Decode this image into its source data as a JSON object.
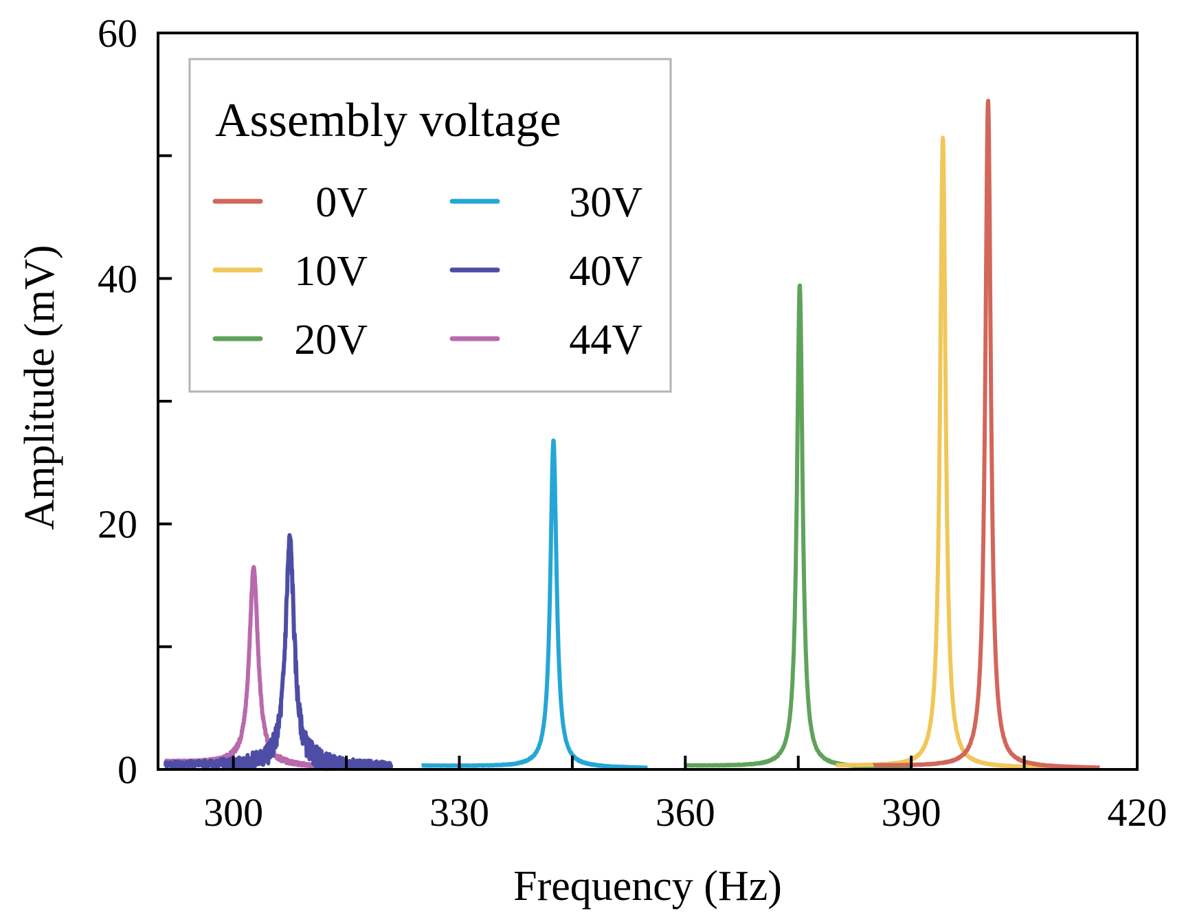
{
  "chart_data": {
    "type": "line",
    "xlabel": "Frequency (Hz)",
    "ylabel": "Amplitude (mV)",
    "xlim": [
      290,
      420
    ],
    "ylim": [
      0,
      60
    ],
    "x_ticks_labeled": [
      300,
      330,
      360,
      390,
      420
    ],
    "x_ticks_minor": [
      315,
      345,
      375,
      405
    ],
    "y_ticks_labeled": [
      0,
      20,
      40,
      60
    ],
    "y_ticks_minor": [
      10,
      30,
      50
    ],
    "grid": false,
    "legend": {
      "title": "Assembly voltage",
      "placement": "top-left",
      "columns": 2
    },
    "series": [
      {
        "name": "0V",
        "color": "#d2665a",
        "peak_frequency": 400.2,
        "peak_amplitude": 54.5,
        "x_range": [
          385,
          415
        ],
        "baseline_start": 0.3,
        "baseline_end": 0.1,
        "half_width": 0.45,
        "noise": 0.05
      },
      {
        "name": "10V",
        "color": "#f0c75a",
        "peak_frequency": 394.2,
        "peak_amplitude": 51.5,
        "x_range": [
          380,
          410
        ],
        "baseline_start": 0.3,
        "baseline_end": 0.1,
        "half_width": 0.45,
        "noise": 0.05
      },
      {
        "name": "20V",
        "color": "#5fa35a",
        "peak_frequency": 375.2,
        "peak_amplitude": 39.5,
        "x_range": [
          360,
          390
        ],
        "baseline_start": 0.3,
        "baseline_end": 0.1,
        "half_width": 0.45,
        "noise": 0.05
      },
      {
        "name": "30V",
        "color": "#25a6d6",
        "peak_frequency": 342.5,
        "peak_amplitude": 26.8,
        "x_range": [
          325,
          355
        ],
        "baseline_start": 0.3,
        "baseline_end": 0.1,
        "half_width": 0.5,
        "noise": 0.05
      },
      {
        "name": "40V",
        "color": "#4e4da5",
        "peak_frequency": 307.5,
        "peak_amplitude": 18.7,
        "x_range": [
          291,
          321
        ],
        "baseline_start": 0.4,
        "baseline_end": 0.3,
        "half_width": 0.7,
        "noise": 0.9
      },
      {
        "name": "44V",
        "color": "#b86aad",
        "peak_frequency": 302.7,
        "peak_amplitude": 16.4,
        "x_range": [
          291,
          311
        ],
        "baseline_start": 0.6,
        "baseline_end": 0.2,
        "half_width": 0.7,
        "noise": 0.2
      }
    ]
  }
}
